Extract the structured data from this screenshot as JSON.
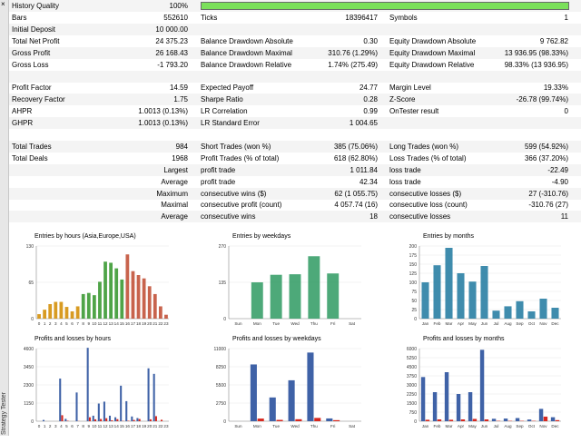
{
  "window": {
    "close_glyph": "×",
    "side_tab": "Strategy Tester"
  },
  "report": {
    "history_quality": {
      "label": "History Quality",
      "value": "100%",
      "fraction": 1.0
    },
    "rows": [
      [
        {
          "l": "Bars",
          "v": "552610"
        },
        {
          "l": "Ticks",
          "v": "18396417"
        },
        {
          "l": "Symbols",
          "v": "1"
        }
      ],
      [
        {
          "l": "Initial Deposit",
          "v": "10 000.00"
        },
        {
          "l": "",
          "v": ""
        },
        {
          "l": "",
          "v": ""
        }
      ],
      [
        {
          "l": "Total Net Profit",
          "v": "24 375.23"
        },
        {
          "l": "Balance Drawdown Absolute",
          "v": "0.30"
        },
        {
          "l": "Equity Drawdown Absolute",
          "v": "9 762.82"
        }
      ],
      [
        {
          "l": "Gross Profit",
          "v": "26 168.43"
        },
        {
          "l": "Balance Drawdown Maximal",
          "v": "310.76 (1.29%)"
        },
        {
          "l": "Equity Drawdown Maximal",
          "v": "13 936.95 (98.33%)"
        }
      ],
      [
        {
          "l": "Gross Loss",
          "v": "-1 793.20"
        },
        {
          "l": "Balance Drawdown Relative",
          "v": "1.74% (275.49)"
        },
        {
          "l": "Equity Drawdown Relative",
          "v": "98.33% (13 936.95)"
        }
      ],
      [
        {
          "l": "",
          "v": ""
        },
        {
          "l": "",
          "v": ""
        },
        {
          "l": "",
          "v": ""
        }
      ],
      [
        {
          "l": "Profit Factor",
          "v": "14.59"
        },
        {
          "l": "Expected Payoff",
          "v": "24.77"
        },
        {
          "l": "Margin Level",
          "v": "19.33%"
        }
      ],
      [
        {
          "l": "Recovery Factor",
          "v": "1.75"
        },
        {
          "l": "Sharpe Ratio",
          "v": "0.28"
        },
        {
          "l": "Z-Score",
          "v": "-26.78 (99.74%)"
        }
      ],
      [
        {
          "l": "AHPR",
          "v": "1.0013 (0.13%)"
        },
        {
          "l": "LR Correlation",
          "v": "0.99"
        },
        {
          "l": "OnTester result",
          "v": "0"
        }
      ],
      [
        {
          "l": "GHPR",
          "v": "1.0013 (0.13%)"
        },
        {
          "l": "LR Standard Error",
          "v": "1 004.65"
        },
        {
          "l": "",
          "v": ""
        }
      ],
      [
        {
          "l": "",
          "v": ""
        },
        {
          "l": "",
          "v": ""
        },
        {
          "l": "",
          "v": ""
        }
      ],
      [
        {
          "l": "Total Trades",
          "v": "984"
        },
        {
          "l": "Short Trades (won %)",
          "v": "385 (75.06%)"
        },
        {
          "l": "Long Trades (won %)",
          "v": "599 (54.92%)"
        }
      ],
      [
        {
          "l": "Total Deals",
          "v": "1968"
        },
        {
          "l": "Profit Trades (% of total)",
          "v": "618 (62.80%)"
        },
        {
          "l": "Loss Trades (% of total)",
          "v": "366 (37.20%)"
        }
      ],
      [
        {
          "l": "",
          "v": "Largest"
        },
        {
          "l": "profit trade",
          "v": "1 011.84"
        },
        {
          "l": "loss trade",
          "v": "-22.49"
        }
      ],
      [
        {
          "l": "",
          "v": "Average"
        },
        {
          "l": "profit trade",
          "v": "42.34"
        },
        {
          "l": "loss trade",
          "v": "-4.90"
        }
      ],
      [
        {
          "l": "",
          "v": "Maximum"
        },
        {
          "l": "consecutive wins ($)",
          "v": "62 (1 055.75)"
        },
        {
          "l": "consecutive losses ($)",
          "v": "27 (-310.76)"
        }
      ],
      [
        {
          "l": "",
          "v": "Maximal"
        },
        {
          "l": "consecutive profit (count)",
          "v": "4 057.74 (16)"
        },
        {
          "l": "consecutive loss (count)",
          "v": "-310.76 (27)"
        }
      ],
      [
        {
          "l": "",
          "v": "Average"
        },
        {
          "l": "consecutive wins",
          "v": "18"
        },
        {
          "l": "consecutive losses",
          "v": "11"
        }
      ]
    ]
  },
  "chart_data": [
    {
      "id": "entries-hours",
      "type": "bar",
      "title": "Entries by hours (Asia,Europe,USA)",
      "categories": [
        "0",
        "1",
        "2",
        "3",
        "4",
        "5",
        "6",
        "7",
        "8",
        "9",
        "10",
        "11",
        "12",
        "13",
        "14",
        "15",
        "16",
        "17",
        "18",
        "19",
        "20",
        "21",
        "22",
        "23"
      ],
      "values": [
        8,
        16,
        26,
        30,
        30,
        21,
        13,
        22,
        44,
        46,
        42,
        66,
        102,
        100,
        90,
        70,
        115,
        85,
        78,
        72,
        58,
        44,
        22,
        7
      ],
      "bar_colors": [
        "#d4900a",
        "#d4900a",
        "#d4900a",
        "#d4900a",
        "#d4900a",
        "#d4900a",
        "#d4900a",
        "#d4900a",
        "#3c9a34",
        "#3c9a34",
        "#3c9a34",
        "#3c9a34",
        "#3c9a34",
        "#3c9a34",
        "#3c9a34",
        "#3c9a34",
        "#c2523a",
        "#c2523a",
        "#c2523a",
        "#c2523a",
        "#c2523a",
        "#c2523a",
        "#c2523a",
        "#c2523a"
      ],
      "yticks": [
        "0",
        "65",
        "130"
      ],
      "ylim": [
        0,
        130
      ]
    },
    {
      "id": "entries-weekdays",
      "type": "bar",
      "title": "Entries by weekdays",
      "categories": [
        "Sun",
        "Mon",
        "Tue",
        "Wed",
        "Thu",
        "Fri",
        "Sat"
      ],
      "values": [
        0,
        135,
        163,
        165,
        232,
        168,
        0
      ],
      "yticks": [
        "0",
        "135",
        "270"
      ],
      "ylim": [
        0,
        270
      ],
      "color": "#3aa06a"
    },
    {
      "id": "entries-months",
      "type": "bar",
      "title": "Entries by months",
      "categories": [
        "Jan",
        "Feb",
        "Mar",
        "Apr",
        "May",
        "Jun",
        "Jul",
        "Aug",
        "Sep",
        "Oct",
        "Nov",
        "Dec"
      ],
      "values": [
        100,
        147,
        195,
        125,
        102,
        145,
        22,
        34,
        48,
        20,
        55,
        30
      ],
      "yticks": [
        "0",
        "25",
        "50",
        "75",
        "100",
        "125",
        "150",
        "175",
        "200"
      ],
      "ylim": [
        0,
        200
      ],
      "color": "#2a7fa4"
    },
    {
      "id": "pnl-hours",
      "type": "bar",
      "title": "Profits and losses by hours",
      "categories": [
        "0",
        "1",
        "2",
        "3",
        "4",
        "5",
        "6",
        "7",
        "8",
        "9",
        "10",
        "11",
        "12",
        "13",
        "14",
        "15",
        "16",
        "17",
        "18",
        "19",
        "20",
        "21",
        "22",
        "23"
      ],
      "series": [
        {
          "name": "profit",
          "values": [
            0,
            80,
            0,
            0,
            2700,
            150,
            0,
            1820,
            0,
            4650,
            350,
            1120,
            1240,
            350,
            250,
            2250,
            1270,
            300,
            200,
            0,
            3350,
            3000,
            0,
            0
          ]
        },
        {
          "name": "loss",
          "values": [
            0,
            0,
            0,
            0,
            380,
            30,
            0,
            10,
            0,
            250,
            120,
            140,
            190,
            60,
            130,
            20,
            30,
            80,
            140,
            0,
            120,
            320,
            90,
            0
          ]
        }
      ],
      "yticks": [
        "0",
        "1150",
        "2300",
        "3450",
        "4600"
      ],
      "ylim": [
        0,
        4600
      ]
    },
    {
      "id": "pnl-weekdays",
      "type": "bar",
      "title": "Profits and losses by weekdays",
      "categories": [
        "Sun",
        "Mon",
        "Tue",
        "Wed",
        "Thu",
        "Fri",
        "Sat"
      ],
      "series": [
        {
          "name": "profit",
          "values": [
            0,
            8600,
            3600,
            6200,
            10400,
            420,
            0
          ]
        },
        {
          "name": "loss",
          "values": [
            0,
            400,
            200,
            300,
            500,
            160,
            0
          ]
        }
      ],
      "yticks": [
        "0",
        "2750",
        "5500",
        "8250",
        "11000"
      ],
      "ylim": [
        0,
        11000
      ]
    },
    {
      "id": "pnl-months",
      "type": "bar",
      "title": "Profits and losses by months",
      "categories": [
        "Jan",
        "Feb",
        "Mar",
        "Apr",
        "May",
        "Jun",
        "Jul",
        "Aug",
        "Sep",
        "Oct",
        "Nov",
        "Dec"
      ],
      "series": [
        {
          "name": "profit",
          "values": [
            3650,
            2400,
            4050,
            2250,
            2400,
            5900,
            200,
            220,
            260,
            140,
            1020,
            330
          ]
        },
        {
          "name": "loss",
          "values": [
            120,
            150,
            120,
            150,
            190,
            150,
            30,
            30,
            30,
            30,
            380,
            90
          ]
        }
      ],
      "yticks": [
        "0",
        "750",
        "1500",
        "2250",
        "3000",
        "3750",
        "4500",
        "5250",
        "6000"
      ],
      "ylim": [
        0,
        6000
      ]
    }
  ],
  "colors": {
    "grid": "#e8e8e8",
    "axis": "#888888",
    "profit": "#3f62a7",
    "loss": "#d7281f"
  }
}
